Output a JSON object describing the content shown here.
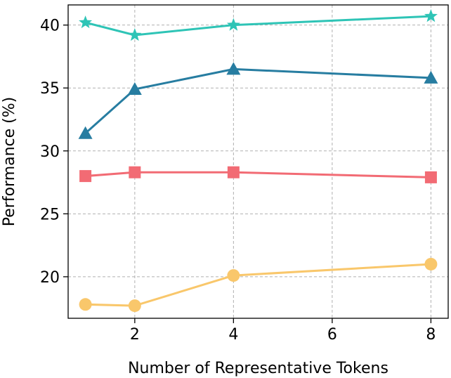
{
  "chart_data": {
    "type": "line",
    "title": "",
    "xlabel": "Number of Representative Tokens",
    "ylabel": "Performance (%)",
    "x": [
      1,
      2,
      4,
      8
    ],
    "xlim": [
      0.65,
      8.35
    ],
    "ylim": [
      16.7,
      41.6
    ],
    "xticks": [
      2,
      4,
      6,
      8
    ],
    "yticks": [
      20,
      25,
      30,
      35,
      40
    ],
    "grid": true,
    "legend": "none",
    "series": [
      {
        "values": [
          40.2,
          39.2,
          40.0,
          40.7
        ],
        "color": "#2ec4b6",
        "marker": "star"
      },
      {
        "values": [
          31.4,
          34.9,
          36.5,
          35.8
        ],
        "color": "#277da1",
        "marker": "triangle"
      },
      {
        "values": [
          28.0,
          28.3,
          28.3,
          27.9
        ],
        "color": "#f26b74",
        "marker": "square"
      },
      {
        "values": [
          17.8,
          17.7,
          20.1,
          21.0
        ],
        "color": "#f9c76b",
        "marker": "circle"
      }
    ]
  }
}
